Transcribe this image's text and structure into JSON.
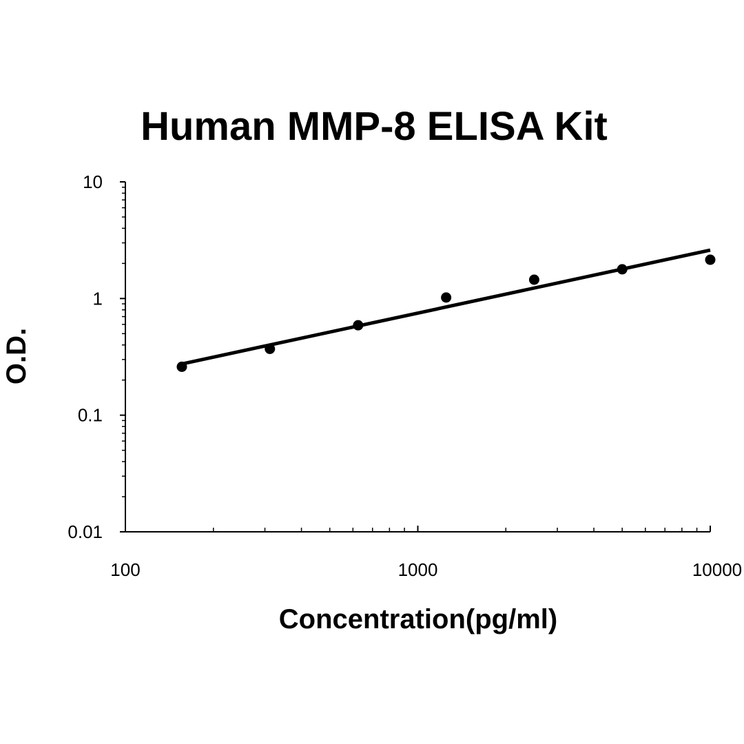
{
  "chart_data": {
    "type": "scatter",
    "title": "Human MMP-8 ELISA Kit",
    "xlabel": "Concentration(pg/ml)",
    "ylabel": "O.D.",
    "x_scale": "log",
    "y_scale": "log",
    "xlim": [
      100,
      10000
    ],
    "ylim": [
      0.01,
      10
    ],
    "x_ticks": [
      "100",
      "1000",
      "10000"
    ],
    "y_ticks": [
      "0.01",
      "0.1",
      "1",
      "10"
    ],
    "grid": false,
    "legend": "none",
    "series": [
      {
        "marker": "circle",
        "color": "#000000",
        "x": [
          156,
          312,
          625,
          1250,
          2500,
          5000,
          10000
        ],
        "y": [
          0.26,
          0.37,
          0.59,
          1.02,
          1.45,
          1.78,
          2.15
        ]
      }
    ],
    "trendline": {
      "type": "power",
      "color": "#000000",
      "x_range": [
        156,
        10000
      ],
      "y_range": [
        0.275,
        2.6
      ]
    }
  }
}
